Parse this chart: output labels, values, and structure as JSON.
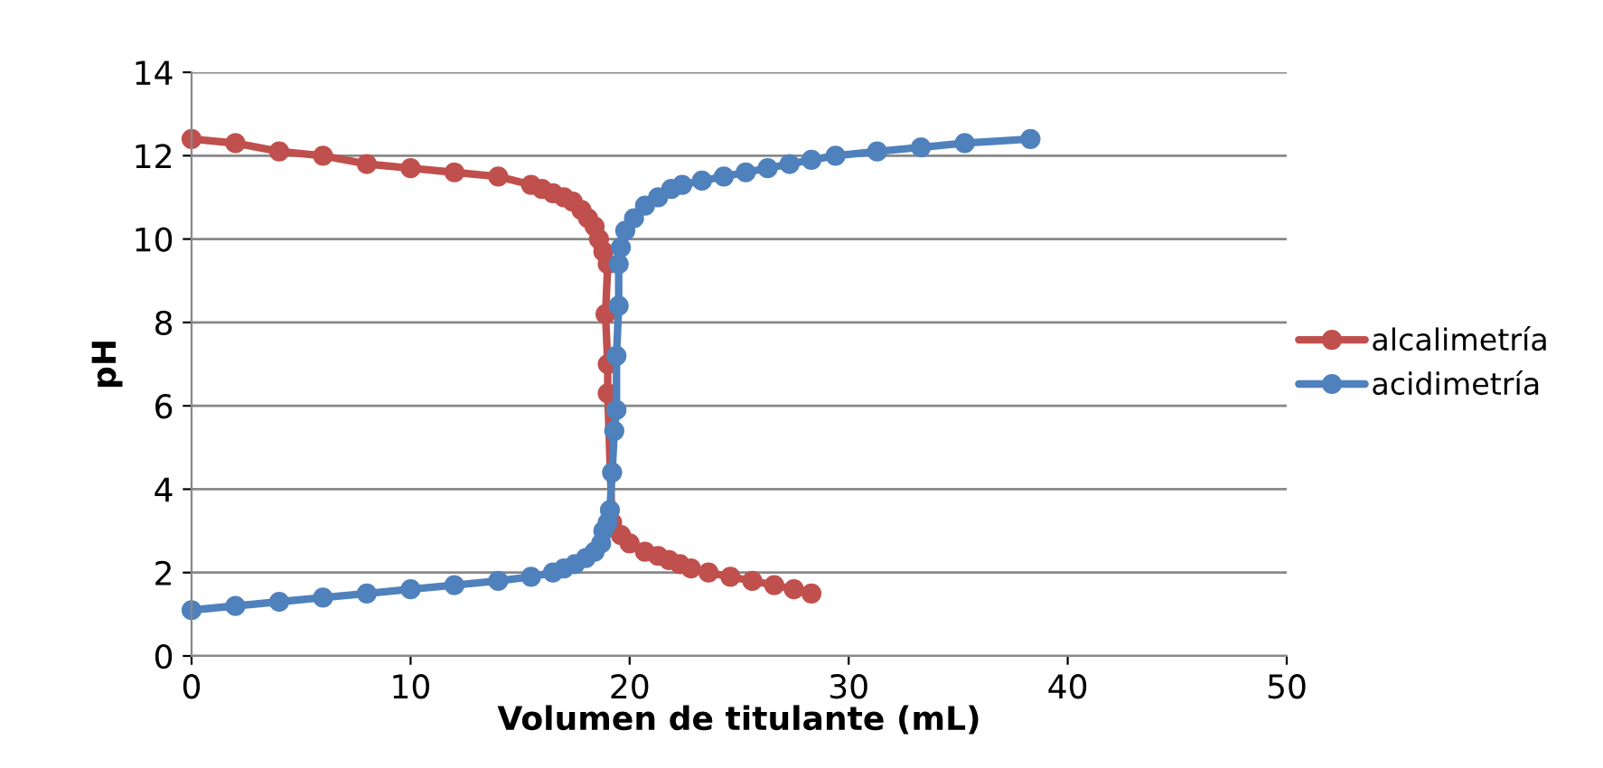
{
  "chart_data": {
    "type": "line",
    "xlabel": "Volumen de titulante (mL)",
    "ylabel": "pH",
    "xlim": [
      0,
      50
    ],
    "xticks": [
      0,
      10,
      20,
      30,
      40,
      50
    ],
    "ylim": [
      0,
      14
    ],
    "yticks": [
      0,
      2,
      4,
      6,
      8,
      10,
      12,
      14
    ],
    "grid": "y",
    "legend": "right",
    "marker": "circle",
    "line_style": "solid",
    "series": [
      {
        "name": "alcalimetría",
        "color": "#c0504d",
        "x": [
          0,
          2,
          4,
          6,
          8,
          10,
          12,
          14,
          15.5,
          16,
          16.5,
          17,
          17.4,
          17.8,
          18.1,
          18.4,
          18.6,
          18.8,
          19.0,
          18.9,
          19.0,
          19.0,
          19.2,
          19.6,
          20.0,
          20.7,
          21.3,
          21.8,
          22.3,
          22.8,
          23.6,
          24.6,
          25.6,
          26.6,
          27.5,
          28.3
        ],
        "values": [
          12.4,
          12.3,
          12.1,
          12.0,
          11.8,
          11.7,
          11.6,
          11.5,
          11.3,
          11.2,
          11.1,
          11.0,
          10.9,
          10.7,
          10.5,
          10.3,
          10.0,
          9.7,
          9.4,
          8.2,
          7.0,
          6.3,
          3.2,
          2.9,
          2.7,
          2.5,
          2.4,
          2.3,
          2.2,
          2.1,
          2.0,
          1.9,
          1.8,
          1.7,
          1.6,
          1.5
        ]
      },
      {
        "name": "acidimetría",
        "color": "#4f81bd",
        "x": [
          0,
          2,
          4,
          6,
          8,
          10,
          12,
          14,
          15.5,
          16.5,
          17,
          17.5,
          18,
          18.4,
          18.7,
          18.8,
          19.0,
          19.1,
          19.2,
          19.3,
          19.4,
          19.4,
          19.5,
          19.5,
          19.6,
          19.8,
          20.2,
          20.7,
          21.3,
          21.9,
          22.4,
          23.3,
          24.3,
          25.3,
          26.3,
          27.3,
          28.3,
          29.4,
          31.3,
          33.3,
          35.3,
          38.3
        ],
        "values": [
          1.1,
          1.2,
          1.3,
          1.4,
          1.5,
          1.6,
          1.7,
          1.8,
          1.9,
          2.0,
          2.1,
          2.2,
          2.35,
          2.5,
          2.7,
          3.0,
          3.2,
          3.5,
          4.4,
          5.4,
          5.9,
          7.2,
          8.4,
          9.4,
          9.8,
          10.2,
          10.5,
          10.8,
          11.0,
          11.2,
          11.3,
          11.4,
          11.5,
          11.6,
          11.7,
          11.8,
          11.9,
          12.0,
          12.1,
          12.2,
          12.3,
          12.4
        ]
      }
    ]
  }
}
